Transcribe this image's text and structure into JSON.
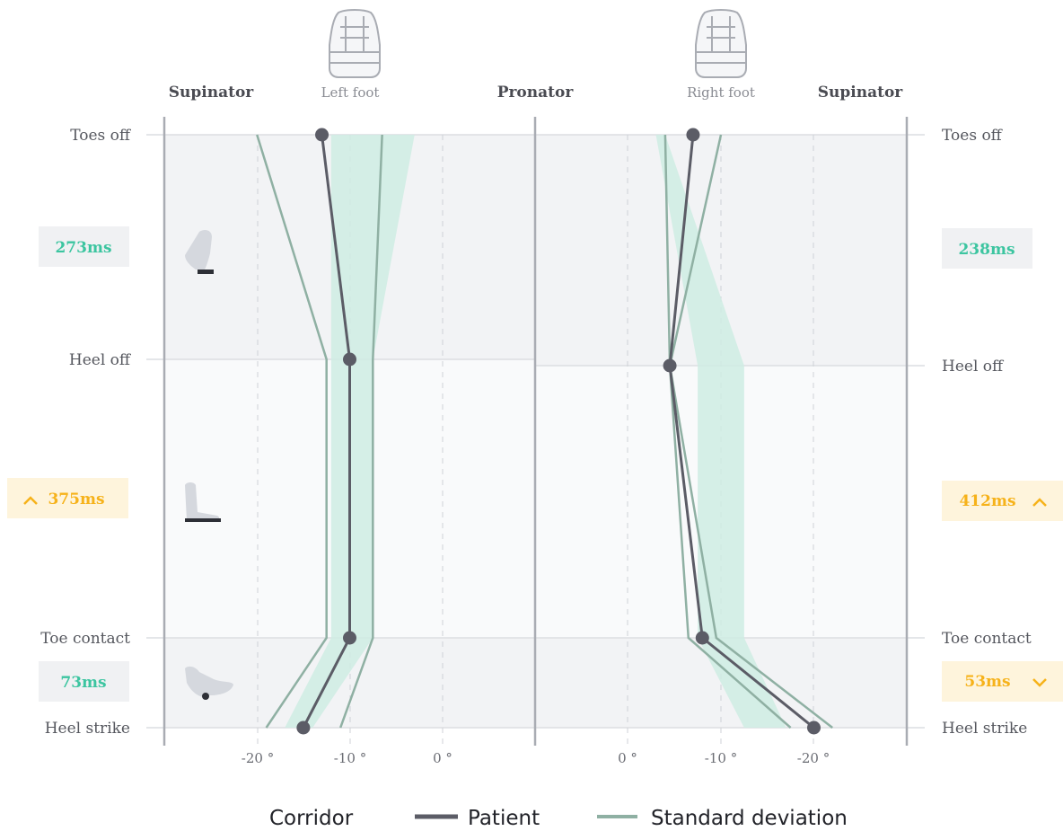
{
  "header": {
    "left_side_label": "Supinator",
    "left_foot_label": "Left foot",
    "center_label": "Pronator",
    "right_foot_label": "Right foot",
    "right_side_label": "Supinator"
  },
  "phases": {
    "toes_off": "Toes off",
    "heel_off": "Heel off",
    "toe_contact": "Toe contact",
    "heel_strike": "Heel strike"
  },
  "durations": {
    "left": [
      {
        "value": "273ms",
        "status": "normal",
        "trend": ""
      },
      {
        "value": "375ms",
        "status": "warning",
        "trend": "up"
      },
      {
        "value": "73ms",
        "status": "normal",
        "trend": ""
      }
    ],
    "right": [
      {
        "value": "238ms",
        "status": "normal",
        "trend": ""
      },
      {
        "value": "412ms",
        "status": "warning",
        "trend": "up"
      },
      {
        "value": "53ms",
        "status": "warning",
        "trend": "down"
      }
    ]
  },
  "ticks": {
    "left": [
      "-20 °",
      "-10 °",
      "0 °"
    ],
    "right": [
      "0 °",
      "-10 °",
      "-20 °"
    ]
  },
  "legend": {
    "corridor": "Corridor",
    "patient": "Patient",
    "std": "Standard deviation"
  },
  "colors": {
    "patient": "#5b5c66",
    "std": "#8fb0a3",
    "corridor": "#cfece3",
    "normal_text": "#3cc5a0",
    "warning_text": "#f6b21a",
    "warning_bg": "#fef4dc",
    "normal_bg": "#f0f1f3"
  },
  "chart_data": [
    {
      "type": "line",
      "panel": "Left foot",
      "phases": [
        "Heel strike",
        "Toe contact",
        "Heel off",
        "Toes off"
      ],
      "x_unit": "degrees",
      "xlim": [
        -30,
        10
      ],
      "patient": [
        -15,
        -10,
        -10,
        -13
      ],
      "std_lower": [
        -19,
        -12.5,
        -12.5,
        -20
      ],
      "std_upper": [
        -11,
        -7.5,
        -7.5,
        -6.5
      ],
      "corridor_lower": [
        -17,
        -12,
        -12,
        -12
      ],
      "corridor_upper": [
        -14,
        -7.5,
        -7.5,
        -3
      ]
    },
    {
      "type": "line",
      "panel": "Right foot",
      "phases": [
        "Heel strike",
        "Toe contact",
        "Heel off",
        "Toes off"
      ],
      "x_unit": "degrees",
      "xlim": [
        10,
        -30
      ],
      "patient": [
        -20,
        -8,
        -4.5,
        -7
      ],
      "std_lower": [
        -17.5,
        -6.5,
        -4.5,
        -4
      ],
      "std_upper": [
        -22,
        -9.5,
        -4.5,
        -10
      ],
      "corridor_lower": [
        -12.5,
        -7.5,
        -7.5,
        -3
      ],
      "corridor_upper": [
        -17,
        -12.5,
        -12.5,
        -4
      ]
    }
  ]
}
